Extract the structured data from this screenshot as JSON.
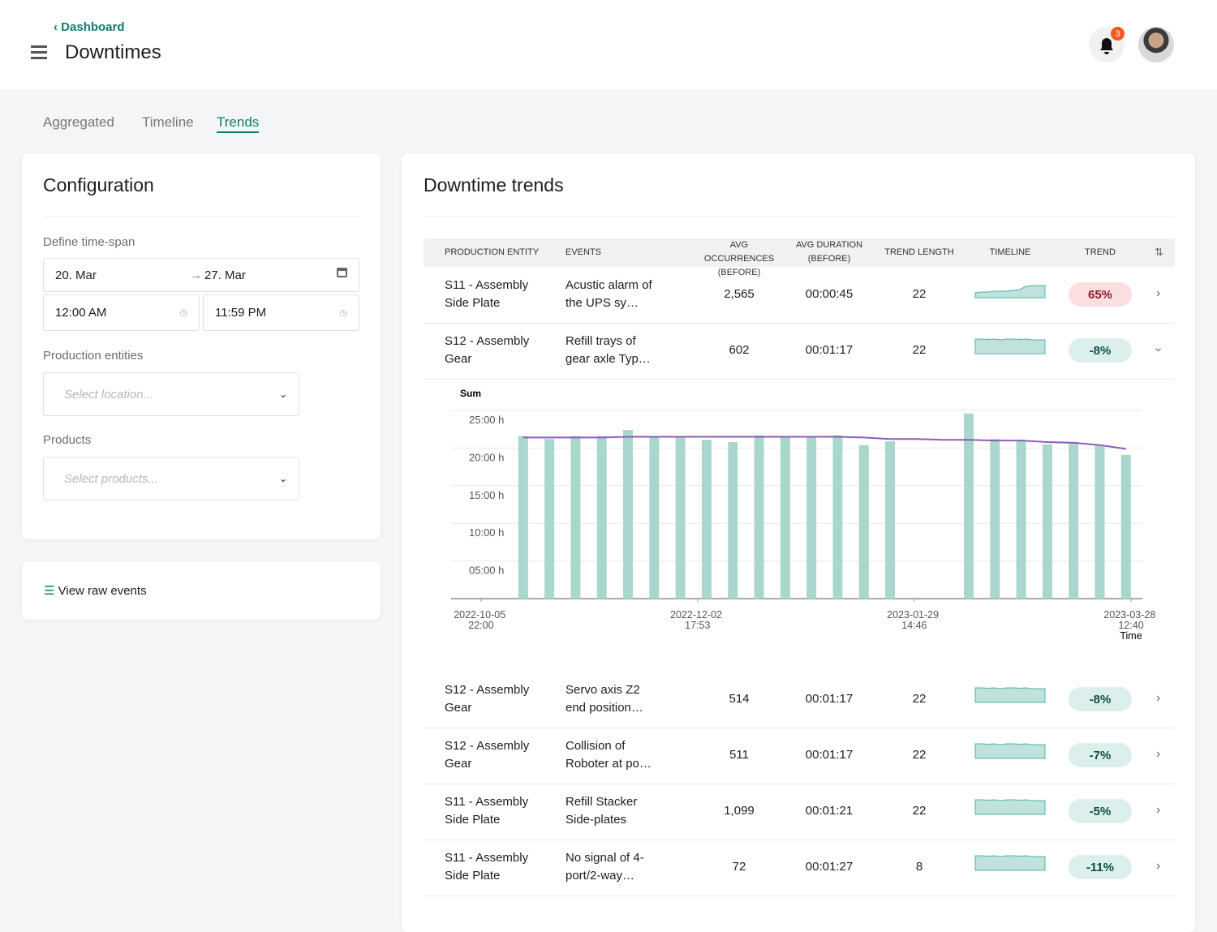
{
  "header": {
    "back": "Dashboard",
    "title": "Downtimes",
    "notifications": "3"
  },
  "tabs": [
    "Aggregated",
    "Timeline",
    "Trends"
  ],
  "configuration": {
    "title": "Configuration",
    "timespan_label": "Define time-span",
    "date_from": "20. Mar",
    "date_to": "27. Mar",
    "time_from": "12:00 AM",
    "time_to": "11:59 PM",
    "entities_label": "Production entities",
    "entities_placeholder": "Select location...",
    "products_label": "Products",
    "products_placeholder": "Select products..."
  },
  "raw_events": "View raw events",
  "trends": {
    "title": "Downtime trends"
  },
  "table": {
    "columns": [
      "PRODUCTION ENTITY",
      "EVENTS",
      "AVG OCCURRENCES (BEFORE)",
      "AVG DURATION (BEFORE)",
      "TREND LENGTH",
      "TIMELINE",
      "TREND"
    ],
    "rows": [
      [
        "S11 - Assembly Side Plate",
        "Acustic alarm of the UPS sy…",
        "2,565",
        "00:00:45",
        "22",
        "65%"
      ],
      [
        "S12 - Assembly Gear",
        "Refill trays of gear axle Typ…",
        "602",
        "00:01:17",
        "22",
        "-8%"
      ],
      [
        "S12 - Assembly Gear",
        "Servo axis Z2 end position…",
        "514",
        "00:01:17",
        "22",
        "-8%"
      ],
      [
        "S12 - Assembly Gear",
        "Collision of Roboter at po…",
        "511",
        "00:01:17",
        "22",
        "-7%"
      ],
      [
        "S11 - Assembly Side Plate",
        "Refill Stacker Side-plates",
        "1,099",
        "00:01:21",
        "22",
        "-5%"
      ],
      [
        "S11 - Assembly Side Plate",
        "No signal of 4-port/2-way…",
        "72",
        "00:01:27",
        "8",
        "-11%"
      ]
    ]
  },
  "chart_data": {
    "type": "bar",
    "y_label": "Sum",
    "x_label": "Time",
    "x": [
      "2022-10-17T04:00",
      "2022-10-24T04:00",
      "2022-10-31T04:00",
      "2022-11-07T04:00",
      "2022-11-14T04:00",
      "2022-11-21T04:00",
      "2022-11-28T04:00",
      "2022-12-05T04:00",
      "2022-12-12T04:00",
      "2022-12-19T04:00",
      "2022-12-26T04:00",
      "2023-01-02T04:00",
      "2023-01-09T04:00",
      "2023-01-16T04:00",
      "2023-01-23T04:00",
      "2023-01-30T04:00",
      "2023-02-06T04:00",
      "2023-02-13T04:00",
      "2023-02-20T04:00",
      "2023-02-27T04:00",
      "2023-03-06T04:00",
      "2023-03-13T04:00",
      "2023-03-20T04:00",
      "2023-03-27T04:00"
    ],
    "series": [
      {
        "type": "bar",
        "color": "#a9d6cd",
        "values": [
          21.6,
          21.2,
          21.6,
          21.6,
          22.4,
          21.6,
          21.6,
          21.1,
          20.8,
          21.7,
          21.4,
          21.4,
          21.7,
          20.4,
          20.9,
          null,
          null,
          24.6,
          21.2,
          20.9,
          20.5,
          20.8,
          20.4,
          19.1
        ]
      },
      {
        "type": "line",
        "color": "#8f5bb8",
        "values": [
          21.4,
          21.4,
          21.4,
          21.4,
          21.5,
          21.5,
          21.5,
          21.5,
          21.5,
          21.5,
          21.5,
          21.5,
          21.5,
          21.4,
          21.2,
          21.2,
          21.1,
          21.1,
          21.0,
          21.0,
          20.8,
          20.7,
          20.4,
          19.9
        ]
      }
    ],
    "xlim": [
      "2022-09-27T22:00",
      "2023-03-31T13:00"
    ],
    "xticks": [
      {
        "value": "2022-10-05T22:00",
        "label": "2022-10-05 22:00"
      },
      {
        "value": "2022-12-02T17:53",
        "label": "2022-12-02 17:53"
      },
      {
        "value": "2023-01-29T14:46",
        "label": "2023-01-29 14:46"
      },
      {
        "value": "2023-03-28T12:40",
        "label": "2023-03-28 12:40"
      }
    ],
    "ylim": [
      0,
      25
    ],
    "yticks": [
      {
        "value": 0,
        "label": ""
      },
      {
        "value": 5,
        "label": "05:00 h"
      },
      {
        "value": 10,
        "label": "10:00 h"
      },
      {
        "value": 15,
        "label": "15:00 h"
      },
      {
        "value": 20,
        "label": "20:00 h"
      },
      {
        "value": 25,
        "label": "25:00 h"
      }
    ],
    "grid": true
  }
}
